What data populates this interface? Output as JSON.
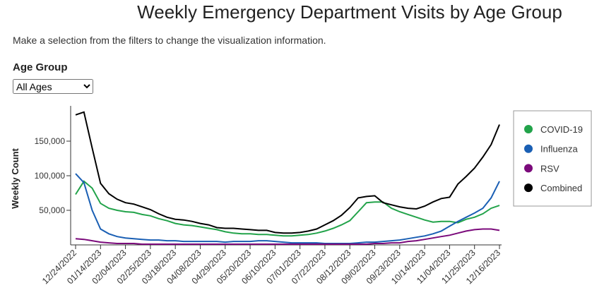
{
  "instruction": "Make a selection from the filters to change the visualization information.",
  "filter": {
    "label": "Age Group",
    "selected": "All Ages"
  },
  "chart_data": {
    "type": "line",
    "title": "Weekly Emergency Department Visits by Age Group",
    "ylabel": "Weekly Count",
    "categories": [
      "12/24/2022",
      null,
      null,
      "01/14/2023",
      null,
      null,
      "02/04/2023",
      null,
      null,
      "02/25/2023",
      null,
      null,
      "03/18/2023",
      null,
      null,
      "04/08/2023",
      null,
      null,
      "04/29/2023",
      null,
      null,
      "05/20/2023",
      null,
      null,
      "06/10/2023",
      null,
      null,
      "07/01/2023",
      null,
      null,
      "07/22/2023",
      null,
      null,
      "08/12/2023",
      null,
      null,
      "09/02/2023",
      null,
      null,
      "09/23/2023",
      null,
      null,
      "10/14/2023",
      null,
      null,
      "11/04/2023",
      null,
      null,
      "11/25/2023",
      null,
      null,
      "12/16/2023"
    ],
    "ylim": [
      0,
      200000
    ],
    "yticks": [
      {
        "value": 50000,
        "label": "50,000"
      },
      {
        "value": 100000,
        "label": "100,000"
      },
      {
        "value": 150000,
        "label": "150,000"
      }
    ],
    "legend": "right",
    "series": [
      {
        "name": "COVID-19",
        "color": "#22a34a",
        "values": [
          73000,
          92000,
          82000,
          60000,
          53000,
          50000,
          48000,
          47000,
          44000,
          42000,
          38000,
          35000,
          31000,
          29000,
          28000,
          26000,
          24000,
          22000,
          19000,
          17000,
          16000,
          16000,
          15000,
          15000,
          14000,
          13000,
          13000,
          14000,
          15000,
          17000,
          20000,
          24000,
          29000,
          35000,
          48000,
          61000,
          62000,
          62000,
          53000,
          48000,
          44000,
          40000,
          36000,
          33000,
          34000,
          34000,
          32000,
          37000,
          40000,
          45000,
          53000,
          57000
        ]
      },
      {
        "name": "Influenza",
        "color": "#1a5fb4",
        "values": [
          103000,
          90000,
          50000,
          23000,
          16000,
          12000,
          10000,
          9000,
          8000,
          7000,
          7000,
          6000,
          6000,
          5000,
          5000,
          5000,
          5000,
          5000,
          4000,
          5000,
          5000,
          5000,
          6000,
          6000,
          5000,
          4000,
          3000,
          3000,
          3000,
          3000,
          2000,
          2000,
          2000,
          2000,
          3000,
          4000,
          4000,
          5000,
          6000,
          7000,
          9000,
          11000,
          13000,
          16000,
          20000,
          27000,
          34000,
          40000,
          46000,
          53000,
          68000,
          92000
        ]
      },
      {
        "name": "RSV",
        "color": "#7b0a7b",
        "values": [
          9000,
          8000,
          6000,
          4000,
          3000,
          2000,
          2000,
          2000,
          1000,
          1000,
          1000,
          1000,
          1000,
          1000,
          1000,
          1000,
          1000,
          1000,
          1000,
          1000,
          1000,
          1000,
          1000,
          1000,
          1000,
          1000,
          1000,
          1000,
          1000,
          1000,
          1000,
          1000,
          1000,
          1000,
          1000,
          1000,
          2000,
          2000,
          3000,
          3000,
          5000,
          6000,
          8000,
          10000,
          12000,
          14000,
          17000,
          20000,
          22000,
          23000,
          23000,
          21000
        ]
      },
      {
        "name": "Combined",
        "color": "#000000",
        "values": [
          188000,
          192000,
          140000,
          89000,
          74000,
          66000,
          61000,
          59000,
          55000,
          51000,
          45000,
          40000,
          37000,
          36000,
          34000,
          31000,
          29000,
          25000,
          24000,
          24000,
          23000,
          22000,
          21000,
          21000,
          18000,
          17000,
          17000,
          18000,
          20000,
          23000,
          29000,
          35000,
          43000,
          54000,
          68000,
          70000,
          71000,
          61000,
          58000,
          55000,
          53000,
          52000,
          56000,
          62000,
          67000,
          69000,
          88000,
          99000,
          111000,
          127000,
          145000,
          174000
        ]
      }
    ]
  }
}
